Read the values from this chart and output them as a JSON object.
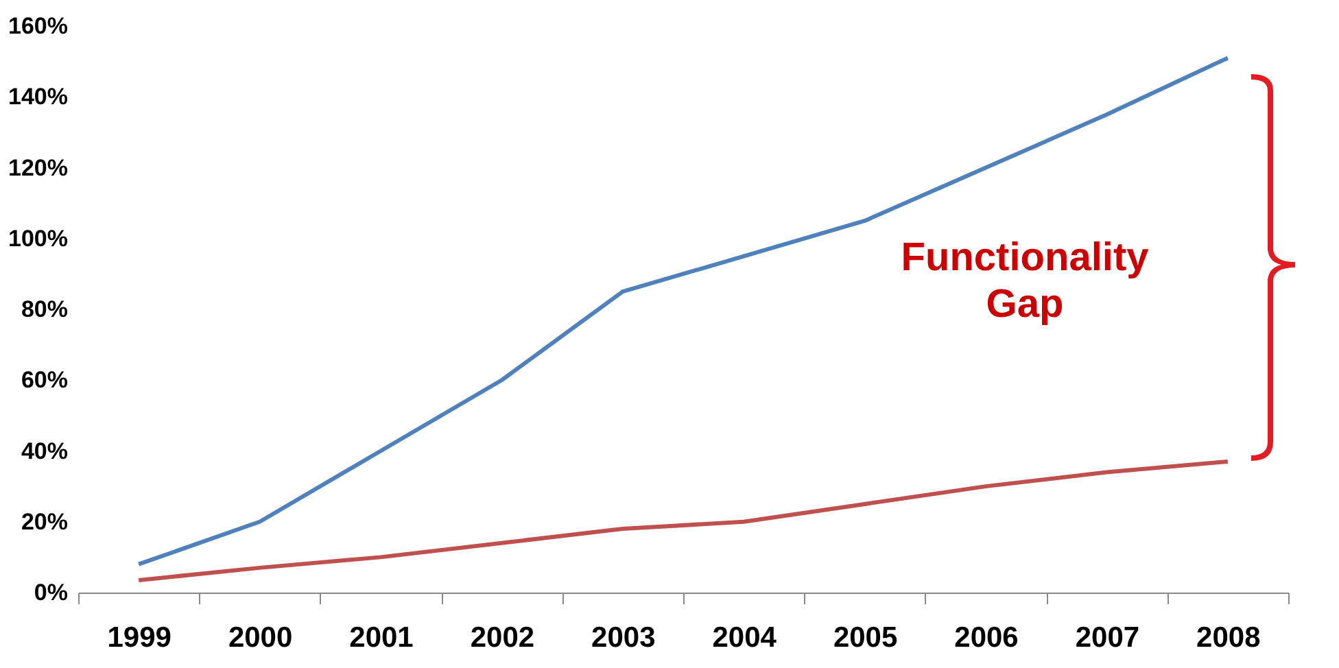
{
  "chart_data": {
    "type": "line",
    "categories": [
      "1999",
      "2000",
      "2001",
      "2002",
      "2003",
      "2004",
      "2005",
      "2006",
      "2007",
      "2008"
    ],
    "series": [
      {
        "color": "#4f81bd",
        "values": [
          8,
          20,
          40,
          60,
          85,
          95,
          105,
          120,
          135,
          151
        ]
      },
      {
        "color": "#c0504d",
        "values": [
          3.5,
          7,
          10,
          14,
          18,
          20,
          25,
          30,
          34,
          37
        ]
      }
    ],
    "ylim": [
      0,
      160
    ],
    "yticks": [
      {
        "value": 0,
        "label": "0%"
      },
      {
        "value": 20,
        "label": "20%"
      },
      {
        "value": 40,
        "label": "40%"
      },
      {
        "value": 60,
        "label": "60%"
      },
      {
        "value": 80,
        "label": "80%"
      },
      {
        "value": 100,
        "label": "100%"
      },
      {
        "value": 120,
        "label": "120%"
      },
      {
        "value": 140,
        "label": "140%"
      },
      {
        "value": 160,
        "label": "160%"
      }
    ],
    "annotations": [
      "Functionality Gap"
    ],
    "grid": false,
    "line_style": "solid",
    "marker": "none"
  }
}
